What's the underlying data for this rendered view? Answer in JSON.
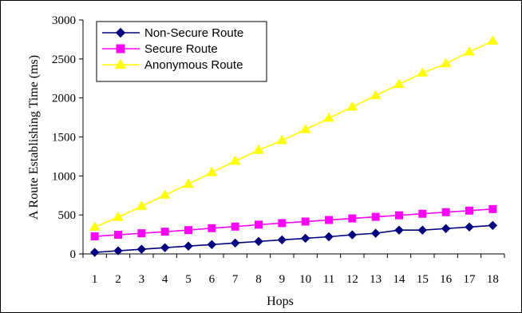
{
  "chart_data": {
    "type": "line",
    "xlabel": "Hops",
    "ylabel": "A Route Establishing Time (ms)",
    "x": [
      1,
      2,
      3,
      4,
      5,
      6,
      7,
      8,
      9,
      10,
      11,
      12,
      13,
      14,
      15,
      16,
      17,
      18
    ],
    "ylim": [
      0,
      3000
    ],
    "yticks": [
      0,
      500,
      1000,
      1500,
      2000,
      2500,
      3000
    ],
    "grid": false,
    "legend_position": "top-left",
    "series": [
      {
        "name": "Non-Secure Route",
        "color": "#000080",
        "marker": "diamond",
        "values": [
          20,
          40,
          60,
          80,
          100,
          120,
          140,
          160,
          180,
          200,
          220,
          245,
          265,
          305,
          305,
          325,
          345,
          365
        ]
      },
      {
        "name": "Secure Route",
        "color": "#ff00ff",
        "marker": "square",
        "values": [
          225,
          245,
          265,
          285,
          305,
          330,
          350,
          375,
          395,
          415,
          435,
          455,
          475,
          495,
          515,
          535,
          555,
          575
        ]
      },
      {
        "name": "Anonymous Route",
        "color": "#ffff00",
        "marker": "triangle",
        "values": [
          345,
          470,
          610,
          755,
          895,
          1045,
          1190,
          1330,
          1455,
          1595,
          1740,
          1885,
          2030,
          2175,
          2320,
          2440,
          2590,
          2730
        ]
      }
    ]
  }
}
